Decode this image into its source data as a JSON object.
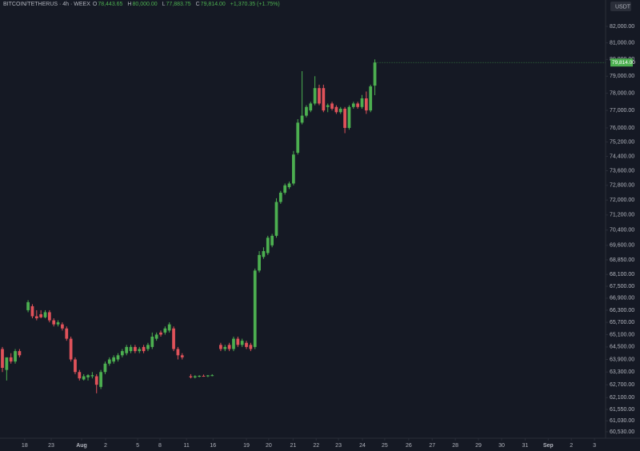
{
  "chart_data": {
    "type": "candlestick",
    "title": "BITCOIN/TETHERUS · 4h · WEEX",
    "ohlc_labels": {
      "o": "O",
      "o_value": "78,443.65",
      "h": "H",
      "h_value": "80,000.00",
      "l": "L",
      "l_value": "77,883.75",
      "c": "C",
      "c_value": "79,814.00",
      "change": "+1,370.35 (+1.75%)"
    },
    "currency": "USDT",
    "last_price_label": "79,814.00",
    "up_color": "#4caf50",
    "down_color": "#e0525a",
    "log_scale": true,
    "grid": false,
    "open": [
      64400,
      63400,
      64000,
      63800,
      64300,
      null,
      66300,
      66500,
      66000,
      66100,
      65950,
      66200,
      65800,
      65600,
      65600,
      65400,
      64900,
      63900,
      63300,
      62950,
      63050,
      63100,
      63100,
      62600,
      63300,
      63700,
      63800,
      63900,
      64100,
      64200,
      64300,
      64500,
      64300,
      64500,
      64400,
      64500,
      64900,
      65200,
      65200,
      65300,
      65400,
      64400,
      64100,
      null,
      63100,
      63050,
      63100,
      63120,
      63100,
      63140,
      null,
      64600,
      64400,
      64600,
      64400,
      64900,
      64600,
      64700,
      64600,
      64500,
      68300,
      69000,
      69200,
      69600,
      70100,
      71900,
      72400,
      72700,
      72900,
      74600,
      76300,
      76700,
      77000,
      77400,
      78300,
      78300,
      77200,
      77400,
      77200,
      76900,
      77100,
      76000,
      77200,
      77400,
      77200,
      77700,
      77000,
      78443.65
    ],
    "high": [
      64500,
      64000,
      64200,
      64400,
      64400,
      null,
      66800,
      66600,
      66300,
      66300,
      66300,
      66300,
      65900,
      65800,
      65700,
      65500,
      65000,
      64000,
      63400,
      63200,
      63200,
      63300,
      63200,
      63400,
      63800,
      64000,
      64100,
      64200,
      64400,
      64600,
      64600,
      64600,
      64500,
      64600,
      64700,
      65200,
      65200,
      65300,
      65500,
      65700,
      65500,
      64500,
      64200,
      null,
      63200,
      63150,
      63150,
      63180,
      63160,
      63200,
      null,
      64700,
      64600,
      64700,
      65000,
      65000,
      64900,
      64800,
      64700,
      68400,
      69300,
      69500,
      70100,
      70200,
      72100,
      72500,
      72900,
      73000,
      74700,
      76500,
      79300,
      77300,
      77500,
      79000,
      78500,
      78500,
      77400,
      77500,
      77300,
      77200,
      77200,
      77300,
      77500,
      77500,
      77900,
      78100,
      78500,
      80000
    ],
    "low": [
      63300,
      62900,
      63700,
      63700,
      64000,
      null,
      66200,
      65900,
      65800,
      65900,
      65900,
      65700,
      65500,
      65500,
      65300,
      64800,
      63800,
      63200,
      62900,
      62900,
      62900,
      63000,
      62300,
      62500,
      63200,
      63600,
      63700,
      63800,
      64000,
      64100,
      64200,
      64200,
      64200,
      64200,
      64300,
      64400,
      64800,
      65000,
      65100,
      65200,
      64300,
      63900,
      63900,
      null,
      63000,
      63000,
      63050,
      63080,
      63060,
      63100,
      null,
      64300,
      64300,
      64300,
      64300,
      64500,
      64500,
      64400,
      64300,
      64400,
      68200,
      68900,
      69100,
      69500,
      70000,
      71800,
      72300,
      72600,
      72800,
      74500,
      76200,
      76600,
      76900,
      77300,
      77300,
      76900,
      76900,
      77000,
      76800,
      76800,
      75700,
      75900,
      77100,
      77100,
      77100,
      76800,
      76900,
      77883.75
    ],
    "close": [
      63500,
      64000,
      63800,
      64300,
      64100,
      null,
      66700,
      66000,
      65900,
      65950,
      66200,
      65800,
      65600,
      65700,
      65400,
      64900,
      63900,
      63300,
      63000,
      63100,
      63150,
      63150,
      62700,
      63300,
      63700,
      63900,
      64000,
      64100,
      64300,
      64500,
      64500,
      64300,
      64400,
      64300,
      64600,
      65000,
      65100,
      65100,
      65400,
      65600,
      64400,
      64100,
      64000,
      null,
      63050,
      63100,
      63120,
      63100,
      63140,
      63150,
      null,
      64400,
      64500,
      64400,
      64900,
      64600,
      64800,
      64500,
      64400,
      68300,
      69100,
      69300,
      70000,
      70100,
      71900,
      72400,
      72800,
      72900,
      74500,
      76300,
      76700,
      77200,
      77400,
      78300,
      77400,
      77000,
      77300,
      77100,
      76900,
      77100,
      76000,
      77200,
      77400,
      77200,
      77700,
      77000,
      78400,
      79814
    ],
    "xlim": [
      -0.56,
      140.9
    ],
    "xticks": [
      {
        "value": 5.2,
        "label": "18"
      },
      {
        "value": 11.4,
        "label": "23"
      },
      {
        "value": 18.5,
        "label": "Aug"
      },
      {
        "value": 24.1,
        "label": "2"
      },
      {
        "value": 31.6,
        "label": "5"
      },
      {
        "value": 36.8,
        "label": "8"
      },
      {
        "value": 43.0,
        "label": "11"
      },
      {
        "value": 49.2,
        "label": "16"
      },
      {
        "value": 57.0,
        "label": "19"
      },
      {
        "value": 62.2,
        "label": "20"
      },
      {
        "value": 67.9,
        "label": "21"
      },
      {
        "value": 73.3,
        "label": "22"
      },
      {
        "value": 78.5,
        "label": "23"
      },
      {
        "value": 84.1,
        "label": "24"
      },
      {
        "value": 89.3,
        "label": "25"
      },
      {
        "value": 94.9,
        "label": "26"
      },
      {
        "value": 100.4,
        "label": "27"
      },
      {
        "value": 105.8,
        "label": "28"
      },
      {
        "value": 111.2,
        "label": "29"
      },
      {
        "value": 116.6,
        "label": "30"
      },
      {
        "value": 122.1,
        "label": "31"
      },
      {
        "value": 127.5,
        "label": "Sep"
      },
      {
        "value": 132.9,
        "label": "2"
      },
      {
        "value": 138.3,
        "label": "3"
      }
    ],
    "ylim": [
      60240,
      83640
    ],
    "yticks": [
      {
        "value": 82000,
        "label": "82,000.00"
      },
      {
        "value": 81000,
        "label": "81,000.00"
      },
      {
        "value": 80000,
        "label": "80,000.00"
      },
      {
        "value": 79000,
        "label": "79,000.00"
      },
      {
        "value": 78000,
        "label": "78,000.00"
      },
      {
        "value": 77000,
        "label": "77,000.00"
      },
      {
        "value": 76000,
        "label": "76,000.00"
      },
      {
        "value": 75200,
        "label": "75,200.00"
      },
      {
        "value": 74400,
        "label": "74,400.00"
      },
      {
        "value": 73600,
        "label": "73,600.00"
      },
      {
        "value": 72800,
        "label": "72,800.00"
      },
      {
        "value": 72000,
        "label": "72,000.00"
      },
      {
        "value": 71200,
        "label": "71,200.00"
      },
      {
        "value": 70400,
        "label": "70,400.00"
      },
      {
        "value": 69600,
        "label": "69,600.00"
      },
      {
        "value": 68850,
        "label": "68,850.00"
      },
      {
        "value": 68100,
        "label": "68,100.00"
      },
      {
        "value": 67500,
        "label": "67,500.00"
      },
      {
        "value": 66900,
        "label": "66,900.00"
      },
      {
        "value": 66300,
        "label": "66,300.00"
      },
      {
        "value": 65700,
        "label": "65,700.00"
      },
      {
        "value": 65100,
        "label": "65,100.00"
      },
      {
        "value": 64500,
        "label": "64,500.00"
      },
      {
        "value": 63900,
        "label": "63,900.00"
      },
      {
        "value": 63300,
        "label": "63,300.00"
      },
      {
        "value": 62700,
        "label": "62,700.00"
      },
      {
        "value": 62100,
        "label": "62,100.00"
      },
      {
        "value": 61550,
        "label": "61,550.00"
      },
      {
        "value": 61030,
        "label": "61,030.00"
      },
      {
        "value": 60530,
        "label": "60,530.00"
      }
    ]
  }
}
